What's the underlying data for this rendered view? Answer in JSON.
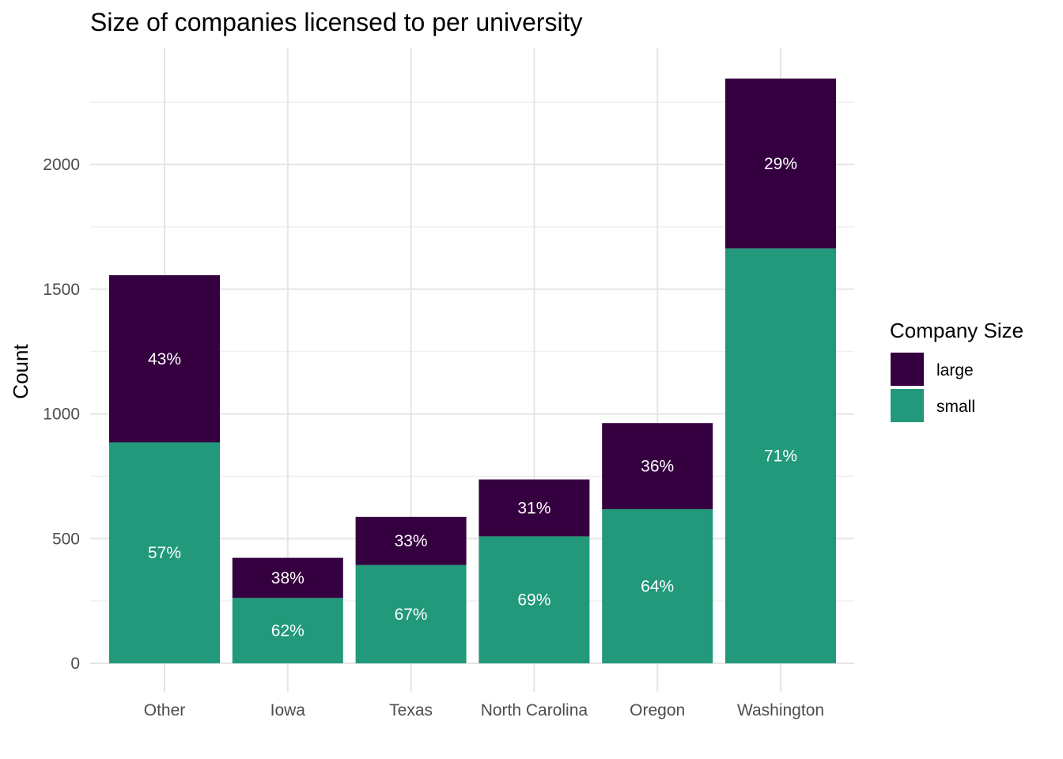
{
  "chart_data": {
    "type": "bar",
    "stacked": true,
    "title": "Size of companies licensed to per university",
    "xlabel": "",
    "ylabel": "Count",
    "categories": [
      "Other",
      "Iowa",
      "Texas",
      "North Carolina",
      "Oregon",
      "Washington"
    ],
    "series": [
      {
        "name": "small",
        "color": "#21997a",
        "values": [
          886,
          262,
          394,
          509,
          618,
          1663
        ],
        "labels": [
          "57%",
          "62%",
          "67%",
          "69%",
          "64%",
          "71%"
        ]
      },
      {
        "name": "large",
        "color": "#35003f",
        "values": [
          670,
          161,
          193,
          228,
          345,
          681
        ],
        "labels": [
          "43%",
          "38%",
          "33%",
          "31%",
          "36%",
          "29%"
        ]
      }
    ],
    "ylim": [
      0,
      2344
    ],
    "yticks": [
      0,
      500,
      1000,
      1500,
      2000
    ],
    "ytick_labels": [
      "0",
      "500",
      "1000",
      "1500",
      "2000"
    ],
    "grid": true,
    "legend": {
      "title": "Company Size",
      "position": "right",
      "items": [
        "large",
        "small"
      ]
    }
  }
}
